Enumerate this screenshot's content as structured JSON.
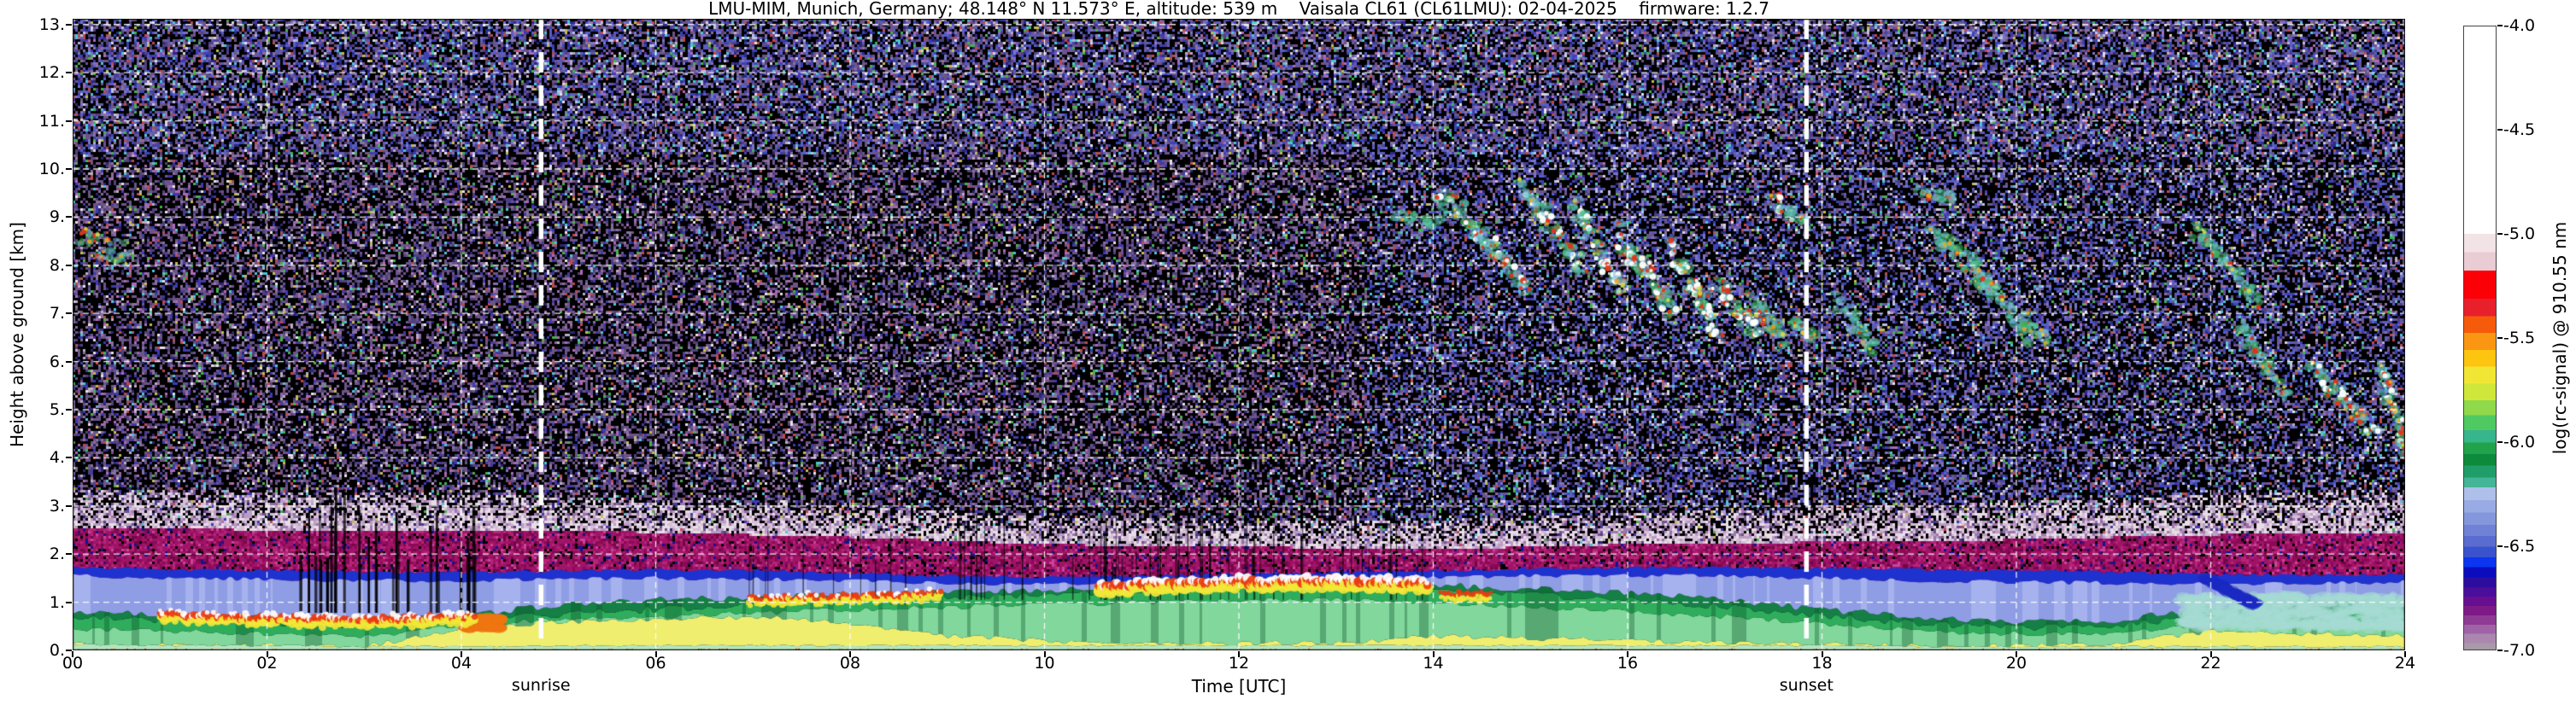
{
  "chart_data": {
    "type": "heatmap",
    "title": "LMU-MIM, Munich, Germany; 48.148° N 11.573° E, altitude: 539 m    Vaisala CL61 (CL61LMU): 02-04-2025    firmware: 1.2.7",
    "xlabel": "Time [UTC]",
    "ylabel": "Height above ground [km]",
    "colorbar_label": "log(rc-signal) @ 910.55 nm",
    "x_ticks": [
      "00",
      "02",
      "04",
      "06",
      "08",
      "10",
      "12",
      "14",
      "16",
      "18",
      "20",
      "22",
      "24"
    ],
    "y_ticks": [
      "0.",
      "1.",
      "2.",
      "3.",
      "4.",
      "5.",
      "6.",
      "7.",
      "8.",
      "9.",
      "10.",
      "11.",
      "12.",
      "13."
    ],
    "colorbar_ticks": [
      "-4.0",
      "-4.5",
      "-5.0",
      "-5.5",
      "-6.0",
      "-6.5",
      "-7.0"
    ],
    "x_range_hours": [
      0,
      24
    ],
    "y_range_km": [
      0,
      13.12
    ],
    "colorbar_range": [
      -4.0,
      -7.0
    ],
    "grid": "white dashed lines every 2 h and every 1 km",
    "annotations": {
      "sunrise": {
        "label": "sunrise",
        "hour": 4.82
      },
      "sunset": {
        "label": "sunset",
        "hour": 17.84
      }
    },
    "colormap_stops": [
      {
        "pos": 0.0,
        "color": "#ffffff"
      },
      {
        "pos": 0.333,
        "color": "#ffffff"
      },
      {
        "pos": 0.333,
        "color": "#f2e3e6"
      },
      {
        "pos": 0.362,
        "color": "#f2e3e6"
      },
      {
        "pos": 0.362,
        "color": "#e9ccd4"
      },
      {
        "pos": 0.392,
        "color": "#e9ccd4"
      },
      {
        "pos": 0.392,
        "color": "#fb0007"
      },
      {
        "pos": 0.437,
        "color": "#fb0007"
      },
      {
        "pos": 0.437,
        "color": "#e8202c"
      },
      {
        "pos": 0.465,
        "color": "#e8202c"
      },
      {
        "pos": 0.465,
        "color": "#f55b0b"
      },
      {
        "pos": 0.492,
        "color": "#f55b0b"
      },
      {
        "pos": 0.492,
        "color": "#fb9612"
      },
      {
        "pos": 0.519,
        "color": "#fb9612"
      },
      {
        "pos": 0.519,
        "color": "#fdc410"
      },
      {
        "pos": 0.546,
        "color": "#fdc410"
      },
      {
        "pos": 0.546,
        "color": "#f2e635"
      },
      {
        "pos": 0.573,
        "color": "#f2e635"
      },
      {
        "pos": 0.573,
        "color": "#cfe73a"
      },
      {
        "pos": 0.6,
        "color": "#cfe73a"
      },
      {
        "pos": 0.6,
        "color": "#8fd94a"
      },
      {
        "pos": 0.624,
        "color": "#8fd94a"
      },
      {
        "pos": 0.624,
        "color": "#4fc962"
      },
      {
        "pos": 0.648,
        "color": "#4fc962"
      },
      {
        "pos": 0.648,
        "color": "#37b58b"
      },
      {
        "pos": 0.668,
        "color": "#37b58b"
      },
      {
        "pos": 0.668,
        "color": "#22a24b"
      },
      {
        "pos": 0.686,
        "color": "#22a24b"
      },
      {
        "pos": 0.686,
        "color": "#0d8a3c"
      },
      {
        "pos": 0.705,
        "color": "#0d8a3c"
      },
      {
        "pos": 0.705,
        "color": "#1f9e6a"
      },
      {
        "pos": 0.724,
        "color": "#1f9e6a"
      },
      {
        "pos": 0.724,
        "color": "#44b596"
      },
      {
        "pos": 0.74,
        "color": "#44b596"
      },
      {
        "pos": 0.74,
        "color": "#aebfe9"
      },
      {
        "pos": 0.76,
        "color": "#aebfe9"
      },
      {
        "pos": 0.76,
        "color": "#99abe4"
      },
      {
        "pos": 0.78,
        "color": "#99abe4"
      },
      {
        "pos": 0.78,
        "color": "#8497dd"
      },
      {
        "pos": 0.8,
        "color": "#8497dd"
      },
      {
        "pos": 0.8,
        "color": "#6f82d6"
      },
      {
        "pos": 0.818,
        "color": "#6f82d6"
      },
      {
        "pos": 0.818,
        "color": "#5a6ccf"
      },
      {
        "pos": 0.835,
        "color": "#5a6ccf"
      },
      {
        "pos": 0.835,
        "color": "#3a52cd"
      },
      {
        "pos": 0.852,
        "color": "#3a52cd"
      },
      {
        "pos": 0.852,
        "color": "#0b35f0"
      },
      {
        "pos": 0.868,
        "color": "#0b35f0"
      },
      {
        "pos": 0.868,
        "color": "#0c0cbf"
      },
      {
        "pos": 0.884,
        "color": "#0c0cbf"
      },
      {
        "pos": 0.884,
        "color": "#2c0d9e"
      },
      {
        "pos": 0.9,
        "color": "#2c0d9e"
      },
      {
        "pos": 0.9,
        "color": "#4a0e9b"
      },
      {
        "pos": 0.915,
        "color": "#4a0e9b"
      },
      {
        "pos": 0.915,
        "color": "#670f90"
      },
      {
        "pos": 0.93,
        "color": "#670f90"
      },
      {
        "pos": 0.93,
        "color": "#7d1a86"
      },
      {
        "pos": 0.945,
        "color": "#7d1a86"
      },
      {
        "pos": 0.945,
        "color": "#8f3a94"
      },
      {
        "pos": 0.96,
        "color": "#8f3a94"
      },
      {
        "pos": 0.96,
        "color": "#a063a6"
      },
      {
        "pos": 0.975,
        "color": "#a063a6"
      },
      {
        "pos": 0.975,
        "color": "#ab87b0"
      },
      {
        "pos": 0.99,
        "color": "#ab87b0"
      },
      {
        "pos": 0.99,
        "color": "#a89aa8"
      },
      {
        "pos": 1.0,
        "color": "#a89aa8"
      }
    ],
    "noise_bands": {
      "magenta_top_km_every2h": [
        2.55,
        2.5,
        2.5,
        2.45,
        2.35,
        2.2,
        2.15,
        2.1,
        2.2,
        2.25,
        2.3,
        2.4,
        2.45
      ],
      "white_top_km_every2h": [
        3.35,
        3.3,
        3.25,
        3.15,
        3.0,
        2.8,
        2.7,
        2.7,
        2.85,
        3.0,
        3.1,
        3.25,
        3.35
      ],
      "palette_upper_mauve": [
        [
          "#6d5488",
          30
        ],
        [
          "#52407a",
          16
        ],
        [
          "#8a6f9e",
          12
        ],
        [
          "#3f3aae",
          10
        ],
        [
          "#2a2670",
          8
        ],
        [
          "#b9aec2",
          5
        ],
        [
          "#4fc4d4",
          3
        ],
        [
          "#43b24c",
          3
        ],
        [
          "#c24848",
          3
        ],
        [
          "#c3bd4e",
          2
        ],
        [
          "#e8e4ea",
          3
        ],
        [
          "#b06ab4",
          5
        ]
      ],
      "palette_upper_blue": [
        [
          "#5a5ec2",
          26
        ],
        [
          "#3c44b4",
          18
        ],
        [
          "#7a74c8",
          14
        ],
        [
          "#6d5488",
          10
        ],
        [
          "#2a2a88",
          8
        ],
        [
          "#bdc2e8",
          6
        ],
        [
          "#4fc4d4",
          4
        ],
        [
          "#43b24c",
          3
        ],
        [
          "#c24848",
          3
        ],
        [
          "#d8d4da",
          4
        ]
      ],
      "palette_white_band": [
        [
          "#e8dde6",
          30
        ],
        [
          "#d5bfd6",
          26
        ],
        [
          "#bb9cc4",
          20
        ],
        [
          "#9d78ac",
          12
        ]
      ],
      "palette_magenta_band": [
        [
          "#a01468",
          36
        ],
        [
          "#8a0a55",
          20
        ],
        [
          "#b62478",
          16
        ],
        [
          "#700845",
          12
        ],
        [
          "#c8459a",
          6
        ],
        [
          "#151290",
          4
        ]
      ]
    },
    "boundary_layer": {
      "layer_colors": [
        "#b2e6c0",
        "#f0ee6e",
        "#82d79c",
        "#2fad5c",
        "#157f46",
        "#8f9de4",
        "#1e32cf"
      ],
      "layer_names": [
        "mint-surface",
        "yellow-aerosol",
        "light-green",
        "green",
        "dark-green-top",
        "periwinkle-residual",
        "blue-cap"
      ],
      "hours": [
        0,
        1,
        2,
        3,
        4,
        5,
        6,
        7,
        8,
        9,
        10,
        11,
        12,
        13,
        14,
        15,
        16,
        17,
        18,
        19,
        20,
        21,
        22,
        23,
        24
      ],
      "profiles_top_km": [
        [
          0.12,
          0.12,
          0.45,
          0.68,
          0.8,
          1.55,
          1.72
        ],
        [
          0.1,
          0.1,
          0.4,
          0.62,
          0.75,
          1.5,
          1.68
        ],
        [
          0.1,
          0.1,
          0.35,
          0.58,
          0.7,
          1.48,
          1.66
        ],
        [
          0.08,
          0.08,
          0.3,
          0.52,
          0.66,
          1.45,
          1.63
        ],
        [
          0.08,
          0.45,
          0.5,
          0.6,
          0.72,
          1.45,
          1.62
        ],
        [
          0.1,
          0.6,
          0.65,
          0.75,
          0.95,
          1.48,
          1.65
        ],
        [
          0.1,
          0.65,
          0.7,
          0.85,
          1.05,
          1.5,
          1.68
        ],
        [
          0.1,
          0.7,
          0.78,
          0.95,
          1.1,
          1.48,
          1.66
        ],
        [
          0.1,
          0.55,
          0.85,
          1.05,
          1.15,
          1.45,
          1.6
        ],
        [
          0.1,
          0.3,
          0.9,
          1.1,
          1.2,
          1.4,
          1.55
        ],
        [
          0.1,
          0.2,
          0.95,
          1.15,
          1.25,
          1.38,
          1.52
        ],
        [
          0.1,
          0.15,
          1.0,
          1.25,
          1.32,
          1.42,
          1.55
        ],
        [
          0.1,
          0.15,
          1.05,
          1.3,
          1.38,
          1.46,
          1.58
        ],
        [
          0.1,
          0.15,
          1.05,
          1.32,
          1.4,
          1.5,
          1.62
        ],
        [
          0.1,
          0.3,
          1.0,
          1.25,
          1.35,
          1.52,
          1.65
        ],
        [
          0.1,
          0.25,
          0.9,
          1.15,
          1.28,
          1.55,
          1.7
        ],
        [
          0.1,
          0.2,
          0.8,
          1.05,
          1.18,
          1.55,
          1.72
        ],
        [
          0.1,
          0.15,
          0.7,
          0.9,
          1.05,
          1.55,
          1.73
        ],
        [
          0.1,
          0.12,
          0.55,
          0.72,
          0.85,
          1.5,
          1.7
        ],
        [
          0.08,
          0.1,
          0.4,
          0.55,
          0.68,
          1.45,
          1.68
        ],
        [
          0.08,
          0.1,
          0.35,
          0.48,
          0.6,
          1.42,
          1.66
        ],
        [
          0.08,
          0.15,
          0.35,
          0.5,
          0.62,
          1.4,
          1.62
        ],
        [
          0.08,
          0.4,
          0.55,
          0.75,
          0.9,
          1.38,
          1.58
        ],
        [
          0.08,
          0.35,
          0.6,
          0.85,
          1.0,
          1.4,
          1.56
        ],
        [
          0.08,
          0.3,
          0.6,
          0.9,
          1.05,
          1.42,
          1.58
        ]
      ]
    },
    "bl_cloud_rows": [
      {
        "t0": 0.9,
        "t1": 4.15,
        "dk": -0.02,
        "white": 0.45,
        "size": 1.0
      },
      {
        "t0": 6.95,
        "t1": 8.95,
        "dk": -0.02,
        "white": 0.25,
        "size": 0.8
      },
      {
        "t0": 10.55,
        "t1": 13.95,
        "dk": 0.04,
        "white": 0.62,
        "size": 1.35
      },
      {
        "t0": 14.08,
        "t1": 14.6,
        "dk": -0.15,
        "white": 0.0,
        "size": 0.7
      }
    ],
    "precip_streak_groups": [
      {
        "t0": 2.3,
        "t1": 4.2,
        "count": 30,
        "top_min": 1.6,
        "top_max": 3.6,
        "bottom": 0.78,
        "alpha": 1.0,
        "w0": 1.5,
        "w1": 3.5
      },
      {
        "t0": 9.0,
        "t1": 14.0,
        "count": 46,
        "top_min": 1.9,
        "top_max": 3.1,
        "bottom": 1.05,
        "alpha": 0.75,
        "w0": 1.0,
        "w1": 2.0
      },
      {
        "t0": 6.8,
        "t1": 8.6,
        "count": 10,
        "top_min": 1.8,
        "top_max": 2.6,
        "bottom": 0.95,
        "alpha": 0.7,
        "w0": 1.0,
        "w1": 2.0
      },
      {
        "t0": 10.5,
        "t1": 13.9,
        "count": 18,
        "top_min": 1.5,
        "top_max": 2.2,
        "bottom": 1.3,
        "alpha": 0.9,
        "w0": 1.0,
        "w1": 2.5
      }
    ],
    "washes": [
      {
        "t0": 21.7,
        "t1": 24.0,
        "b": 0.45,
        "t": 1.15,
        "color": "#a6dbd3",
        "alpha": 0.5,
        "n": 700,
        "slant": 0
      },
      {
        "t0": 4.02,
        "t1": 4.4,
        "b": 0.45,
        "t": 0.68,
        "color": "#ee7512",
        "alpha": 0.85,
        "n": 120,
        "slant": 0
      },
      {
        "t0": 21.95,
        "t1": 22.45,
        "b": 0.95,
        "t": 1.5,
        "color": "#1c2bc2",
        "alpha": 0.4,
        "n": 260,
        "slant": 1
      }
    ],
    "cloud_features": [
      {
        "t0": 0.08,
        "t1": 0.58,
        "h0": 8.55,
        "h1": 8.2,
        "w": 0.3,
        "i": 0.9,
        "c": "r"
      },
      {
        "t0": 13.62,
        "t1": 14.05,
        "h0": 9.05,
        "h1": 8.85,
        "w": 0.15,
        "i": 0.5,
        "c": "c"
      },
      {
        "t0": 14.0,
        "t1": 14.5,
        "h0": 9.55,
        "h1": 8.8,
        "w": 0.3,
        "i": 0.85,
        "c": "w"
      },
      {
        "t0": 14.35,
        "t1": 15.0,
        "h0": 8.9,
        "h1": 7.5,
        "w": 0.25,
        "i": 0.8,
        "c": "w"
      },
      {
        "t0": 14.9,
        "t1": 15.55,
        "h0": 9.65,
        "h1": 7.9,
        "w": 0.3,
        "i": 0.9,
        "c": "w"
      },
      {
        "t0": 15.45,
        "t1": 15.95,
        "h0": 9.25,
        "h1": 7.4,
        "w": 0.25,
        "i": 0.85,
        "c": "w"
      },
      {
        "t0": 15.9,
        "t1": 16.5,
        "h0": 8.65,
        "h1": 6.95,
        "w": 0.3,
        "i": 0.95,
        "c": "w"
      },
      {
        "t0": 16.45,
        "t1": 16.95,
        "h0": 8.35,
        "h1": 6.6,
        "w": 0.3,
        "i": 0.95,
        "c": "w"
      },
      {
        "t0": 16.9,
        "t1": 17.35,
        "h0": 7.65,
        "h1": 6.5,
        "w": 0.25,
        "i": 0.85,
        "c": "w"
      },
      {
        "t0": 17.25,
        "t1": 17.65,
        "h0": 7.35,
        "h1": 6.35,
        "w": 0.2,
        "i": 0.8,
        "c": "r"
      },
      {
        "t0": 17.5,
        "t1": 17.85,
        "h0": 9.35,
        "h1": 8.9,
        "w": 0.2,
        "i": 0.75,
        "c": "w"
      },
      {
        "t0": 17.7,
        "t1": 17.95,
        "h0": 6.85,
        "h1": 6.5,
        "w": 0.15,
        "i": 0.6,
        "c": "r"
      },
      {
        "t0": 18.15,
        "t1": 18.55,
        "h0": 7.25,
        "h1": 6.3,
        "w": 0.25,
        "i": 0.35,
        "c": "c"
      },
      {
        "t0": 19.0,
        "t1": 19.4,
        "h0": 9.55,
        "h1": 9.35,
        "w": 0.12,
        "i": 0.5,
        "c": "r"
      },
      {
        "t0": 19.15,
        "t1": 19.8,
        "h0": 8.8,
        "h1": 7.35,
        "w": 0.25,
        "i": 0.75,
        "c": "c"
      },
      {
        "t0": 19.55,
        "t1": 20.15,
        "h0": 8.05,
        "h1": 6.5,
        "w": 0.25,
        "i": 0.7,
        "c": "c"
      },
      {
        "t0": 20.05,
        "t1": 20.35,
        "h0": 6.95,
        "h1": 6.4,
        "w": 0.15,
        "i": 0.4,
        "c": "c"
      },
      {
        "t0": 21.85,
        "t1": 22.5,
        "h0": 8.75,
        "h1": 7.25,
        "w": 0.22,
        "i": 0.75,
        "c": "c"
      },
      {
        "t0": 22.3,
        "t1": 22.8,
        "h0": 6.75,
        "h1": 5.2,
        "w": 0.22,
        "i": 0.7,
        "c": "c"
      },
      {
        "t0": 23.05,
        "t1": 23.7,
        "h0": 5.9,
        "h1": 4.5,
        "w": 0.25,
        "i": 0.85,
        "c": "w"
      },
      {
        "t0": 23.75,
        "t1": 24.0,
        "h0": 5.8,
        "h1": 4.2,
        "w": 0.28,
        "i": 0.95,
        "c": "w"
      }
    ],
    "baseline_dots": {
      "colors": [
        "#f08a10",
        "#ffd24a",
        "#e04010"
      ],
      "height_km": 0.04
    }
  }
}
